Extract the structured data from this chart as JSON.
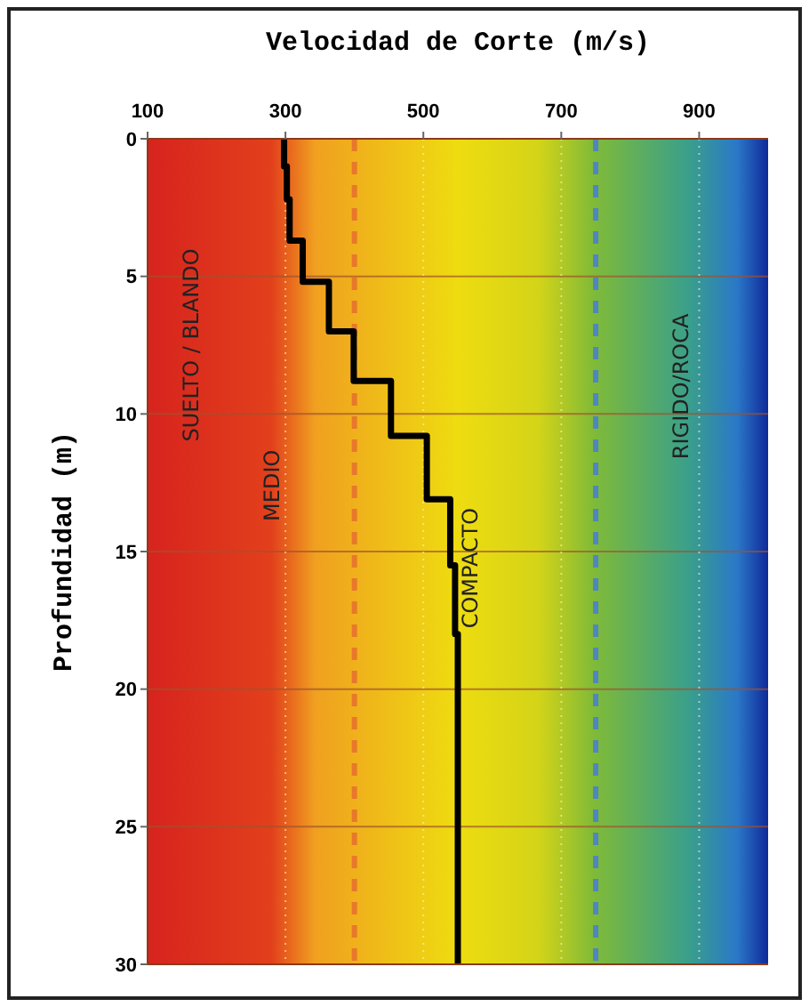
{
  "chart_data": {
    "type": "line",
    "xlabel": "Velocidad de Corte (m/s)",
    "ylabel": "Profundidad (m)",
    "xlim": [
      100,
      1000
    ],
    "xticks": [
      100,
      300,
      500,
      700,
      900
    ],
    "ylim": [
      30,
      0
    ],
    "yticks": [
      0,
      5,
      10,
      15,
      20,
      25,
      30
    ],
    "grid": true,
    "marker": "none",
    "line_style": "solid",
    "series": [
      {
        "color": "#000000",
        "x": [
          298,
          298,
          302,
          302,
          306,
          306,
          325,
          325,
          363,
          363,
          399,
          399,
          453,
          453,
          505,
          505,
          539,
          539,
          546,
          546,
          550,
          550
        ],
        "values": [
          0,
          1,
          1,
          2.2,
          2.2,
          3.7,
          3.7,
          5.2,
          5.2,
          7,
          7,
          8.8,
          8.8,
          10.8,
          10.8,
          13.1,
          13.1,
          15.5,
          15.5,
          18,
          18,
          30
        ]
      }
    ],
    "ref_lines": [
      {
        "axis": "x",
        "value": 400,
        "color": "#e8782a",
        "line_style": "dashed"
      },
      {
        "axis": "x",
        "value": 750,
        "color": "#4f86bf",
        "line_style": "dashed"
      }
    ],
    "annotations": [
      "SUELTO / BLANDO",
      "MEDIO",
      "COMPACTO",
      "RIGIDO/ROCA"
    ]
  }
}
